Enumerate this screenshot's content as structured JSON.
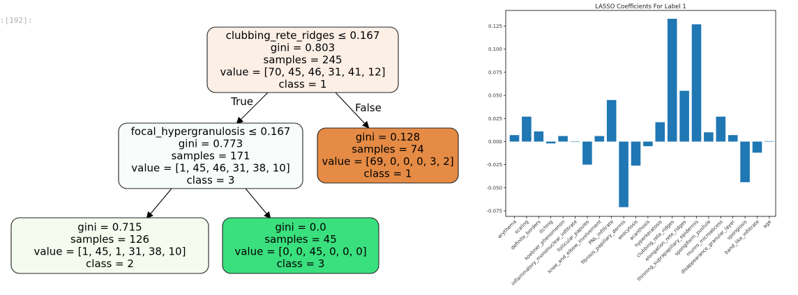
{
  "cell_prompt": ":[192]:",
  "colors": {
    "bar": "#1f77b4",
    "leaf_orange": "#e58b45",
    "leaf_green": "#3be07e"
  },
  "chart_data": [
    {
      "type": "tree",
      "nodes": [
        {
          "id": "root",
          "lines": [
            "clubbing_rete_ridges ≤ 0.167",
            "gini = 0.803",
            "samples = 245",
            "value = [70, 45, 46, 31, 41, 12]",
            "class = 1"
          ],
          "fill": "#fcefe6"
        },
        {
          "id": "left",
          "lines": [
            "focal_hypergranulosis ≤ 0.167",
            "gini = 0.773",
            "samples = 171",
            "value = [1, 45, 46, 31, 38, 10]",
            "class = 3"
          ],
          "fill": "#f8fdfb"
        },
        {
          "id": "right",
          "lines": [
            "gini = 0.128",
            "samples = 74",
            "value = [69, 0, 0, 0, 3, 2]",
            "class = 1"
          ],
          "fill": "#e58b45"
        },
        {
          "id": "ll",
          "lines": [
            "gini = 0.715",
            "samples = 126",
            "value = [1, 45, 1, 31, 38, 10]",
            "class = 2"
          ],
          "fill": "#f5fbee"
        },
        {
          "id": "lr",
          "lines": [
            "gini = 0.0",
            "samples = 45",
            "value = [0, 0, 45, 0, 0, 0]",
            "class = 3"
          ],
          "fill": "#3be07e"
        }
      ],
      "edges": [
        {
          "from": "root",
          "to": "left",
          "label": "True"
        },
        {
          "from": "root",
          "to": "right",
          "label": "False"
        },
        {
          "from": "left",
          "to": "ll",
          "label": ""
        },
        {
          "from": "left",
          "to": "lr",
          "label": ""
        }
      ]
    },
    {
      "type": "bar",
      "title": "LASSO Coefficients For Label 1",
      "categories": [
        "erythema",
        "scaling",
        "definite_borders",
        "itching",
        "koebner_phenomenon",
        "inflammatory_mononuclear_infiltrate",
        "follicular_papules",
        "knee_and_elbow_involvement",
        "PNL_infiltrate",
        "fibrosis_papillary_dermis",
        "exocytosis",
        "acanthosis",
        "hyperkeratosis",
        "clubbing_rete_ridges",
        "elongation_rete_ridges",
        "thinning_suprapapillary_epidermis",
        "spongiform_pustule",
        "munro_microabcess",
        "disappearance_granular_layer",
        "spongiosis",
        "band_like_infiltrate",
        "age"
      ],
      "values": [
        0.007,
        0.027,
        0.011,
        -0.002,
        0.006,
        0.0,
        -0.025,
        0.006,
        0.045,
        -0.071,
        -0.026,
        -0.005,
        0.021,
        0.133,
        0.055,
        0.127,
        0.01,
        0.027,
        0.007,
        -0.044,
        -0.012,
        0.0005
      ],
      "yticks": [
        "0.125",
        "0.100",
        "0.075",
        "0.050",
        "0.025",
        "0.000",
        "-0.025",
        "-0.050",
        "-0.075"
      ],
      "ylim": [
        -0.081,
        0.142
      ],
      "grid": false
    }
  ]
}
